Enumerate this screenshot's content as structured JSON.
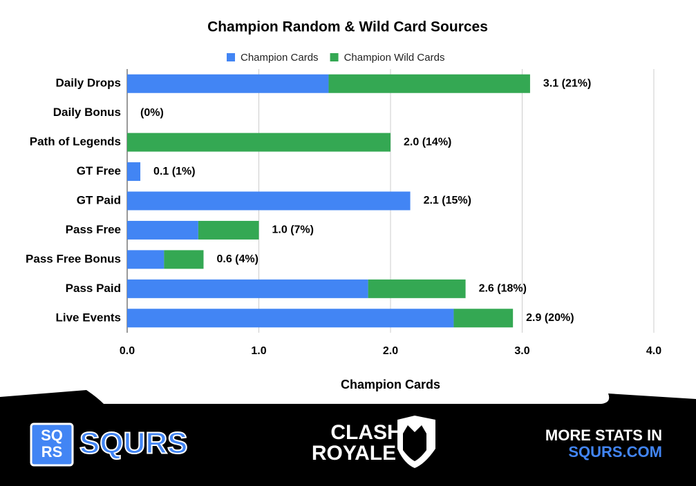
{
  "chart_data": {
    "type": "stacked-hbar",
    "title": "Champion Random & Wild Card Sources",
    "categories": [
      "Daily Drops",
      "Daily Bonus",
      "Path of Legends",
      "GT Free",
      "GT Paid",
      "Pass Free",
      "Pass Free Bonus",
      "Pass Paid",
      "Live Events"
    ],
    "series": [
      {
        "name": "Champion Cards",
        "color": "#4285f4",
        "values": [
          1.53,
          0,
          0,
          0.1,
          2.15,
          0.54,
          0.28,
          1.83,
          2.48
        ]
      },
      {
        "name": "Champion Wild Cards",
        "color": "#34a853",
        "values": [
          1.53,
          0,
          2.0,
          0,
          0,
          0.46,
          0.3,
          0.74,
          0.45
        ]
      }
    ],
    "total_labels": [
      "3.1 (21%)",
      "(0%)",
      "2.0 (14%)",
      "0.1 (1%)",
      "2.1 (15%)",
      "1.0 (7%)",
      "0.6 (4%)",
      "2.6 (18%)",
      "2.9 (20%)"
    ],
    "xlim": [
      0,
      4
    ],
    "xticks": [
      {
        "value": 0,
        "label": "0.0"
      },
      {
        "value": 1,
        "label": "1.0"
      },
      {
        "value": 2,
        "label": "2.0"
      },
      {
        "value": 3,
        "label": "3.0"
      },
      {
        "value": 4,
        "label": "4.0"
      }
    ],
    "xlabel": "Champion Cards",
    "grid": true,
    "legend": "top"
  },
  "footer": {
    "icon_top": "SQ",
    "icon_bottom": "RS",
    "brand": "SQURS",
    "game_top": "CLASH",
    "game_bottom": "ROYALE",
    "promo": "MORE STATS IN",
    "site": "SQURS.COM"
  }
}
